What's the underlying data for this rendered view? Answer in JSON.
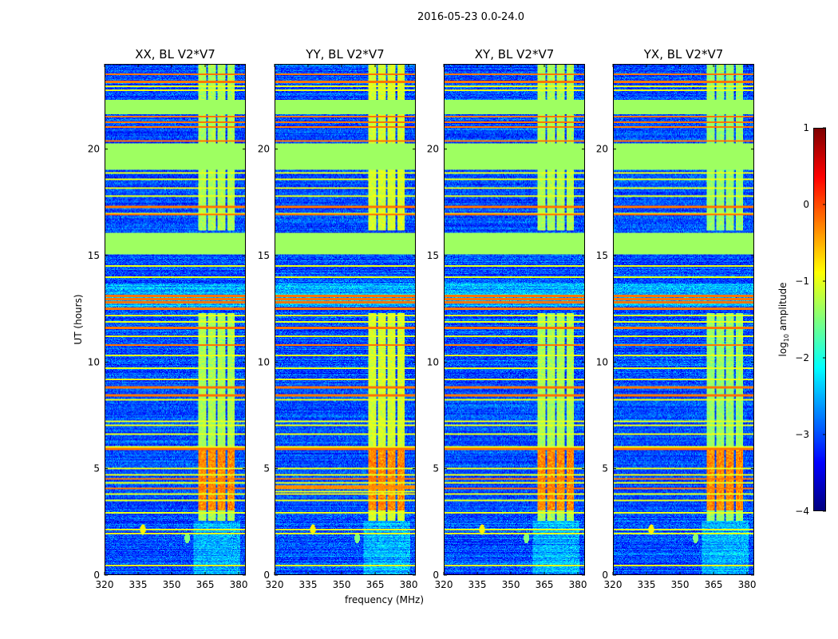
{
  "suptitle": "2016-05-23 0.0-24.0",
  "chart_data": {
    "type": "heatmap",
    "title": "2016-05-23 0.0-24.0",
    "xlabel": "frequency (MHz)",
    "ylabel": "UT (hours)",
    "xlim": [
      320,
      383.2
    ],
    "ylim": [
      0,
      24
    ],
    "xticks": [
      320,
      335,
      350,
      365,
      380
    ],
    "yticks": [
      0,
      5,
      10,
      15,
      20
    ],
    "colormap": "jet",
    "colorbar": {
      "label": "log10 amplitude",
      "label_main": "log",
      "label_sub": "10",
      "label_rest": " amplitude",
      "range": [
        -4,
        1
      ],
      "ticks": [
        1,
        0,
        -1,
        -2,
        -3,
        -4
      ]
    },
    "panels": [
      {
        "title": "XX, BL V2*V7",
        "extra_lines": [],
        "rfi_strength": 0
      },
      {
        "title": "YY, BL V2*V7",
        "extra_lines": [
          [
            4.1,
            0.18,
            -0.3
          ],
          [
            3.9,
            0.08,
            -1.0
          ]
        ],
        "rfi_strength": 0.2
      },
      {
        "title": "XY, BL V2*V7",
        "extra_lines": [],
        "rfi_strength": 0
      },
      {
        "title": "YX, BL V2*V7",
        "extra_lines": [],
        "rfi_strength": -0.1
      }
    ],
    "background_log_amplitude": -3.0,
    "flagged_blocks_ut": [
      [
        21.67,
        22.35
      ],
      [
        19.05,
        20.3
      ],
      [
        15.07,
        16.1
      ]
    ],
    "flagged_value": -1.35,
    "rfi_columns_mhz": [
      [
        362,
        365.8
      ],
      [
        366.5,
        370
      ],
      [
        370.8,
        374.3
      ],
      [
        375.2,
        378.5
      ]
    ],
    "rfi_active_ut": [
      [
        2.5,
        12.3
      ],
      [
        16.2,
        24
      ]
    ],
    "rfi_value": -1.3,
    "rfi_strong_ut": [
      3.0,
      6.0
    ],
    "rfi_strong_value": -0.3,
    "bright_band_ut": [
      12.6,
      13.7
    ],
    "orange_lines_ut": [
      23.55,
      23.2,
      21.56,
      21.3,
      21.07,
      20.4,
      17.3,
      16.95,
      13.1,
      12.95,
      12.8,
      12.5,
      11.6,
      10.8,
      8.8,
      8.43,
      5.9,
      4.5,
      4.05
    ],
    "yellow_lines_ut": [
      23.0,
      22.8,
      18.9,
      18.6,
      18.2,
      17.8,
      17.0,
      14.5,
      14.0,
      12.2,
      11.9,
      11.2,
      10.3,
      9.7,
      9.2,
      8.2,
      7.2,
      7.0,
      6.6,
      6.0,
      5.0,
      4.7,
      4.3,
      3.8,
      3.5,
      2.9,
      2.1,
      1.9,
      0.4
    ],
    "point_sources": [
      {
        "freq": 337,
        "ut": 2.1,
        "value": -0.8
      },
      {
        "freq": 357,
        "ut": 1.7,
        "value": -1.5
      }
    ]
  }
}
